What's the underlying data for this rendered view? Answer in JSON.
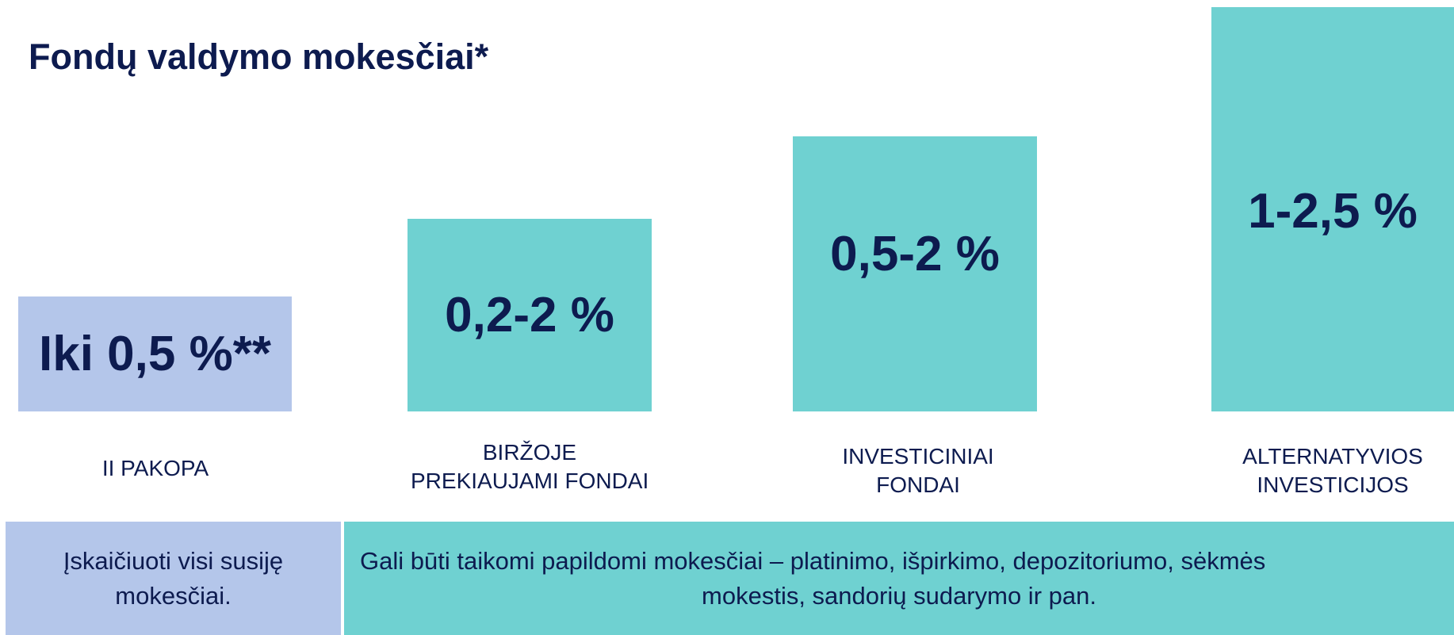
{
  "title": "Fondų valdymo mokesčiai*",
  "items": [
    {
      "value": "Iki 0,5 %**",
      "label": [
        "II PAKOPA"
      ]
    },
    {
      "value": "0,2-2 %",
      "label": [
        "BIRŽOJE",
        "PREKIAUJAMI FONDAI"
      ]
    },
    {
      "value": "0,5-2 %",
      "label": [
        "INVESTICINIAI",
        "FONDAI"
      ]
    },
    {
      "value": "1-2,5 %",
      "label": [
        "ALTERNATYVIOS",
        "INVESTICIJOS"
      ]
    }
  ],
  "notes": [
    {
      "lines": [
        "Įskaičiuoti visi susiję",
        "mokesčiai."
      ]
    },
    {
      "lines": [
        "Gali būti taikomi papildomi mokesčiai – platinimo, išpirkimo, depozitoriumo, sėkmės",
        "mokestis, sandorių sudarymo ir pan."
      ]
    }
  ]
}
